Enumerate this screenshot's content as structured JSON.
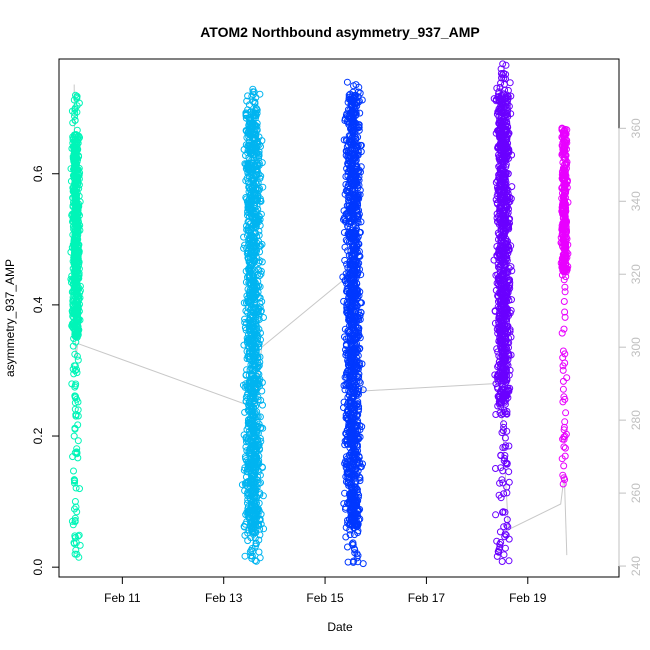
{
  "chart_data": {
    "type": "scatter",
    "title": "ATOM2 Northbound asymmetry_937_AMP",
    "xlabel": "Date",
    "ylabel": "asymmetry_937_AMP",
    "x_ticks": [
      "Feb 11",
      "Feb 13",
      "Feb 15",
      "Feb 17",
      "Feb 19"
    ],
    "x_tick_days": [
      11,
      13,
      15,
      17,
      19
    ],
    "xlim_days": [
      9.75,
      20.8
    ],
    "ylim": [
      -0.015,
      0.775
    ],
    "y_ticks": [
      0.0,
      0.2,
      0.4,
      0.6
    ],
    "y_ticks_right": [
      240,
      260,
      280,
      300,
      320,
      340,
      360
    ],
    "ylim_right": [
      237,
      379
    ],
    "grid": false,
    "legend": "none",
    "marker": "open-circle",
    "clusters": [
      {
        "center_day": 10.08,
        "width_days": 0.22,
        "color": "#00f5b8",
        "count": 700,
        "min": 0.007,
        "max": 0.72,
        "dense_low": 0.35,
        "dense_high": 0.66
      },
      {
        "center_day": 13.58,
        "width_days": 0.46,
        "color": "#00b4f0",
        "count": 1200,
        "min": 0.007,
        "max": 0.735,
        "dense_low": 0.05,
        "dense_high": 0.7
      },
      {
        "center_day": 15.55,
        "width_days": 0.46,
        "color": "#0038ff",
        "count": 1300,
        "min": 0.005,
        "max": 0.74,
        "dense_low": 0.06,
        "dense_high": 0.72
      },
      {
        "center_day": 18.52,
        "width_days": 0.4,
        "color": "#6a00ff",
        "count": 1000,
        "min": 0.005,
        "max": 0.77,
        "dense_low": 0.25,
        "dense_high": 0.72
      },
      {
        "center_day": 19.72,
        "width_days": 0.16,
        "color": "#e800ff",
        "count": 350,
        "min": 0.12,
        "max": 0.68,
        "dense_low": 0.45,
        "dense_high": 0.67
      }
    ],
    "secondary_series": {
      "name": "",
      "color": "#c8c8c8",
      "points": [
        {
          "day": 10.05,
          "value": 372
        },
        {
          "day": 10.08,
          "value": 297
        },
        {
          "day": 10.12,
          "value": 301
        },
        {
          "day": 13.5,
          "value": 284
        },
        {
          "day": 13.62,
          "value": 284
        },
        {
          "day": 13.75,
          "value": 300
        },
        {
          "day": 15.5,
          "value": 320
        },
        {
          "day": 15.62,
          "value": 305
        },
        {
          "day": 15.75,
          "value": 288
        },
        {
          "day": 18.3,
          "value": 290
        },
        {
          "day": 18.45,
          "value": 291
        },
        {
          "day": 18.62,
          "value": 250
        },
        {
          "day": 19.65,
          "value": 257
        },
        {
          "day": 19.72,
          "value": 265
        },
        {
          "day": 19.77,
          "value": 243
        }
      ]
    }
  }
}
